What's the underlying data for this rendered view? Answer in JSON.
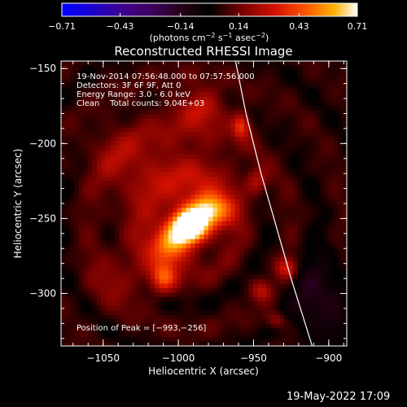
{
  "chart_data": {
    "type": "heatmap",
    "title": "Reconstructed RHESSI Image",
    "xlabel": "Heliocentric X (arcsec)",
    "ylabel": "Heliocentric Y (arcsec)",
    "xlim": [
      -1078,
      -888
    ],
    "ylim": [
      -335,
      -145
    ],
    "xticks": [
      {
        "value": -1050,
        "label": "−1050"
      },
      {
        "value": -1000,
        "label": "−1000"
      },
      {
        "value": -950,
        "label": "−950"
      },
      {
        "value": -900,
        "label": "−900"
      }
    ],
    "yticks": [
      {
        "value": -150,
        "label": "−150"
      },
      {
        "value": -200,
        "label": "−200"
      },
      {
        "value": -250,
        "label": "−250"
      },
      {
        "value": -300,
        "label": "−300"
      }
    ],
    "colorbar": {
      "range": [
        -0.71,
        0.71
      ],
      "ticks": [
        {
          "value": -0.71,
          "label": "−0.71"
        },
        {
          "value": -0.43,
          "label": "−0.43"
        },
        {
          "value": -0.14,
          "label": "−0.14"
        },
        {
          "value": 0.14,
          "label": "0.14"
        },
        {
          "value": 0.43,
          "label": "0.43"
        },
        {
          "value": 0.71,
          "label": "0.71"
        }
      ],
      "unit_prefix": "(photons cm",
      "unit_exp1": "−2",
      "unit_mid1": " s",
      "unit_exp2": "−1",
      "unit_mid2": " asec",
      "unit_exp3": "−2",
      "unit_suffix": ")"
    },
    "annotations": [
      "19-Nov-2014 07:56:48.000 to 07:57:56.000",
      "Detectors: 3F 6F 9F, Att 0",
      "Energy Range: 3.0 - 6.0 keV",
      "Clean    Total counts: 9.04E+03"
    ],
    "peak_label": "Position of Peak = [−993,−256]",
    "peak": {
      "x": -993,
      "y": -256,
      "value": 0.71
    },
    "limb_curve": [
      [
        -962,
        -145
      ],
      [
        -955,
        -180
      ],
      [
        -945,
        -220
      ],
      [
        -935,
        -255
      ],
      [
        -925,
        -290
      ],
      [
        -911,
        -335
      ]
    ],
    "sources": [
      {
        "x": -993,
        "y": -256,
        "amp": 0.71,
        "sx": 8,
        "sy": 7
      },
      {
        "x": -980,
        "y": -245,
        "amp": 0.58,
        "sx": 10,
        "sy": 8
      },
      {
        "x": -1005,
        "y": -268,
        "amp": 0.45,
        "sx": 9,
        "sy": 9
      },
      {
        "x": -1010,
        "y": -290,
        "amp": 0.3,
        "sx": 6,
        "sy": 7
      },
      {
        "x": -985,
        "y": -175,
        "amp": 0.22,
        "sx": 10,
        "sy": 8
      },
      {
        "x": -958,
        "y": -188,
        "amp": 0.3,
        "sx": 4,
        "sy": 6
      },
      {
        "x": -948,
        "y": -225,
        "amp": 0.2,
        "sx": 5,
        "sy": 6
      },
      {
        "x": -928,
        "y": -283,
        "amp": 0.26,
        "sx": 5,
        "sy": 5
      },
      {
        "x": -945,
        "y": -298,
        "amp": 0.2,
        "sx": 5,
        "sy": 5
      },
      {
        "x": -935,
        "y": -318,
        "amp": 0.18,
        "sx": 5,
        "sy": 4
      },
      {
        "x": -1040,
        "y": -210,
        "amp": 0.12,
        "sx": 14,
        "sy": 14
      },
      {
        "x": -1040,
        "y": -290,
        "amp": 0.12,
        "sx": 14,
        "sy": 14
      },
      {
        "x": -1000,
        "y": -230,
        "amp": 0.2,
        "sx": 28,
        "sy": 34
      }
    ],
    "background_level": 0.05,
    "negative_region": {
      "x": -905,
      "y": -305,
      "amp": -0.18,
      "sx": 14,
      "sy": 20
    },
    "colorscale": [
      [
        0.0,
        "#0000ff"
      ],
      [
        0.1,
        "#1a00d0"
      ],
      [
        0.2,
        "#3c0090"
      ],
      [
        0.3,
        "#400060"
      ],
      [
        0.42,
        "#200010"
      ],
      [
        0.5,
        "#000000"
      ],
      [
        0.6,
        "#700000"
      ],
      [
        0.72,
        "#d01000"
      ],
      [
        0.82,
        "#ff5000"
      ],
      [
        0.92,
        "#ffb000"
      ],
      [
        1.0,
        "#ffffff"
      ]
    ],
    "grid": false
  },
  "footer": {
    "date_stamp": "19-May-2022 17:09"
  }
}
